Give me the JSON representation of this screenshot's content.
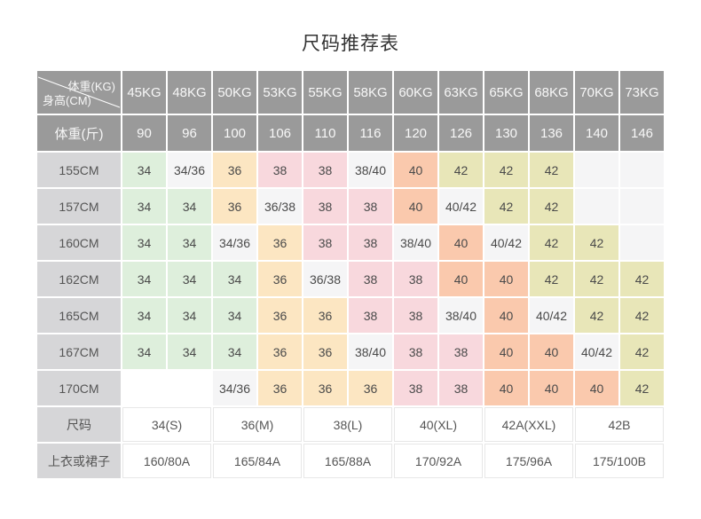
{
  "title": "尺码推荐表",
  "palette": {
    "header": "#9a9a9a",
    "label": "#d6d6d8",
    "green": "#deefdc",
    "peach": "#fce6c2",
    "pink": "#f8d8dd",
    "salmon": "#fac9ad",
    "yellow": "#e8e6b8",
    "gray": "#f5f5f6",
    "white": "#ffffff"
  },
  "chart_data": {
    "type": "table",
    "title": "尺码推荐表",
    "header": {
      "corner_top": "体重(KG)",
      "corner_bottom": "身高(CM)",
      "weight_kg": [
        "45KG",
        "48KG",
        "50KG",
        "53KG",
        "55KG",
        "58KG",
        "60KG",
        "63KG",
        "65KG",
        "68KG",
        "70KG",
        "73KG"
      ],
      "weight_jin_label": "体重(斤)",
      "weight_jin": [
        "90",
        "96",
        "100",
        "106",
        "110",
        "116",
        "120",
        "126",
        "130",
        "136",
        "140",
        "146"
      ]
    },
    "rows": [
      {
        "label": "155CM",
        "cells": [
          {
            "v": "34",
            "c": "green"
          },
          {
            "v": "34/36",
            "c": "gray"
          },
          {
            "v": "36",
            "c": "peach"
          },
          {
            "v": "38",
            "c": "pink"
          },
          {
            "v": "38",
            "c": "pink"
          },
          {
            "v": "38/40",
            "c": "gray"
          },
          {
            "v": "40",
            "c": "salmon"
          },
          {
            "v": "42",
            "c": "yellow"
          },
          {
            "v": "42",
            "c": "yellow"
          },
          {
            "v": "42",
            "c": "yellow"
          },
          {
            "v": "",
            "c": "gray"
          },
          {
            "v": "",
            "c": "gray"
          }
        ]
      },
      {
        "label": "157CM",
        "cells": [
          {
            "v": "34",
            "c": "green"
          },
          {
            "v": "34",
            "c": "green"
          },
          {
            "v": "36",
            "c": "peach"
          },
          {
            "v": "36/38",
            "c": "gray"
          },
          {
            "v": "38",
            "c": "pink"
          },
          {
            "v": "38",
            "c": "pink"
          },
          {
            "v": "40",
            "c": "salmon"
          },
          {
            "v": "40/42",
            "c": "gray"
          },
          {
            "v": "42",
            "c": "yellow"
          },
          {
            "v": "42",
            "c": "yellow"
          },
          {
            "v": "",
            "c": "gray"
          },
          {
            "v": "",
            "c": "gray"
          }
        ]
      },
      {
        "label": "160CM",
        "cells": [
          {
            "v": "34",
            "c": "green"
          },
          {
            "v": "34",
            "c": "green"
          },
          {
            "v": "34/36",
            "c": "gray"
          },
          {
            "v": "36",
            "c": "peach"
          },
          {
            "v": "38",
            "c": "pink"
          },
          {
            "v": "38",
            "c": "pink"
          },
          {
            "v": "38/40",
            "c": "gray"
          },
          {
            "v": "40",
            "c": "salmon"
          },
          {
            "v": "40/42",
            "c": "gray"
          },
          {
            "v": "42",
            "c": "yellow"
          },
          {
            "v": "42",
            "c": "yellow"
          },
          {
            "v": "",
            "c": "gray"
          }
        ]
      },
      {
        "label": "162CM",
        "cells": [
          {
            "v": "34",
            "c": "green"
          },
          {
            "v": "34",
            "c": "green"
          },
          {
            "v": "34",
            "c": "green"
          },
          {
            "v": "36",
            "c": "peach"
          },
          {
            "v": "36/38",
            "c": "gray"
          },
          {
            "v": "38",
            "c": "pink"
          },
          {
            "v": "38",
            "c": "pink"
          },
          {
            "v": "40",
            "c": "salmon"
          },
          {
            "v": "40",
            "c": "salmon"
          },
          {
            "v": "42",
            "c": "yellow"
          },
          {
            "v": "42",
            "c": "yellow"
          },
          {
            "v": "42",
            "c": "yellow"
          }
        ]
      },
      {
        "label": "165CM",
        "cells": [
          {
            "v": "34",
            "c": "green"
          },
          {
            "v": "34",
            "c": "green"
          },
          {
            "v": "34",
            "c": "green"
          },
          {
            "v": "36",
            "c": "peach"
          },
          {
            "v": "36",
            "c": "peach"
          },
          {
            "v": "38",
            "c": "pink"
          },
          {
            "v": "38",
            "c": "pink"
          },
          {
            "v": "38/40",
            "c": "gray"
          },
          {
            "v": "40",
            "c": "salmon"
          },
          {
            "v": "40/42",
            "c": "gray"
          },
          {
            "v": "42",
            "c": "yellow"
          },
          {
            "v": "42",
            "c": "yellow"
          }
        ]
      },
      {
        "label": "167CM",
        "cells": [
          {
            "v": "34",
            "c": "green"
          },
          {
            "v": "34",
            "c": "green"
          },
          {
            "v": "34",
            "c": "green"
          },
          {
            "v": "36",
            "c": "peach"
          },
          {
            "v": "36",
            "c": "peach"
          },
          {
            "v": "38/40",
            "c": "gray"
          },
          {
            "v": "38",
            "c": "pink"
          },
          {
            "v": "38",
            "c": "pink"
          },
          {
            "v": "40",
            "c": "salmon"
          },
          {
            "v": "40",
            "c": "salmon"
          },
          {
            "v": "40/42",
            "c": "gray"
          },
          {
            "v": "42",
            "c": "yellow"
          }
        ]
      },
      {
        "label": "170CM",
        "cells": [
          {
            "v": "",
            "c": "white"
          },
          {
            "v": "",
            "c": "white"
          },
          {
            "v": "34/36",
            "c": "gray"
          },
          {
            "v": "36",
            "c": "peach"
          },
          {
            "v": "36",
            "c": "peach"
          },
          {
            "v": "36",
            "c": "peach"
          },
          {
            "v": "38",
            "c": "pink"
          },
          {
            "v": "38",
            "c": "pink"
          },
          {
            "v": "40",
            "c": "salmon"
          },
          {
            "v": "40",
            "c": "salmon"
          },
          {
            "v": "40",
            "c": "salmon"
          },
          {
            "v": "42",
            "c": "yellow"
          }
        ]
      }
    ],
    "footer": {
      "size_label": "尺码",
      "sizes": [
        "34(S)",
        "36(M)",
        "38(L)",
        "40(XL)",
        "42A(XXL)",
        "42B"
      ],
      "garment_label": "上衣或裙子",
      "garments": [
        "160/80A",
        "165/84A",
        "165/88A",
        "170/92A",
        "175/96A",
        "175/100B"
      ]
    }
  }
}
